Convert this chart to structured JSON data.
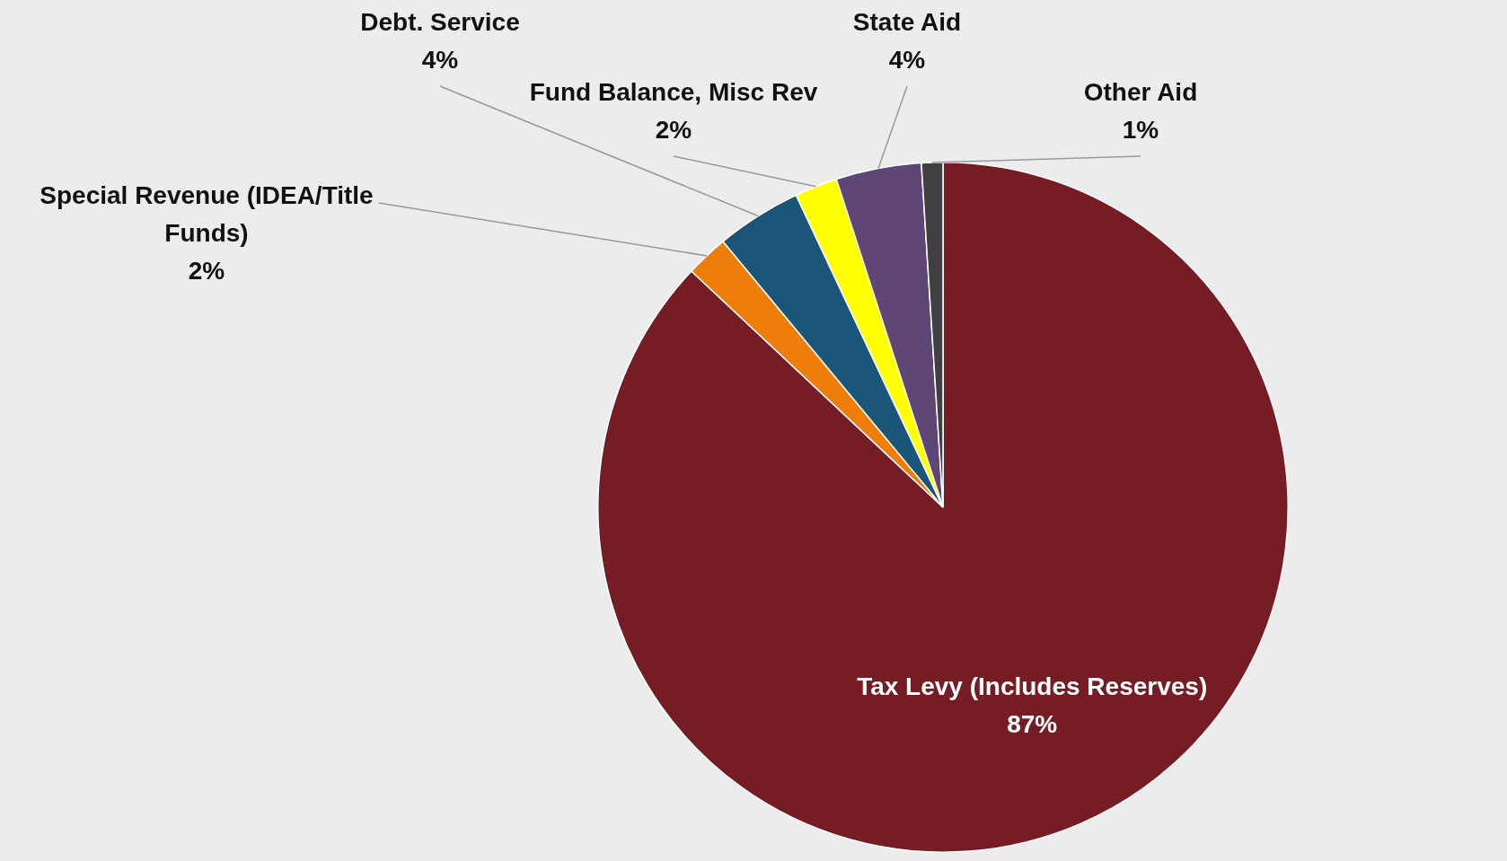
{
  "chart_data": {
    "type": "pie",
    "categories": [
      "Tax Levy (Includes Reserves)",
      "Special Revenue (IDEA/Title Funds)",
      "Debt. Service",
      "Fund Balance, Misc Rev",
      "State Aid",
      "Other Aid"
    ],
    "values": [
      87,
      2,
      4,
      2,
      4,
      1
    ],
    "colors": [
      "#751c24",
      "#ee7d0a",
      "#1b5578",
      "#ffff00",
      "#5e4676",
      "#404040"
    ],
    "value_labels": [
      "87%",
      "2%",
      "4%",
      "2%",
      "4%",
      "1%"
    ],
    "legend": false
  }
}
